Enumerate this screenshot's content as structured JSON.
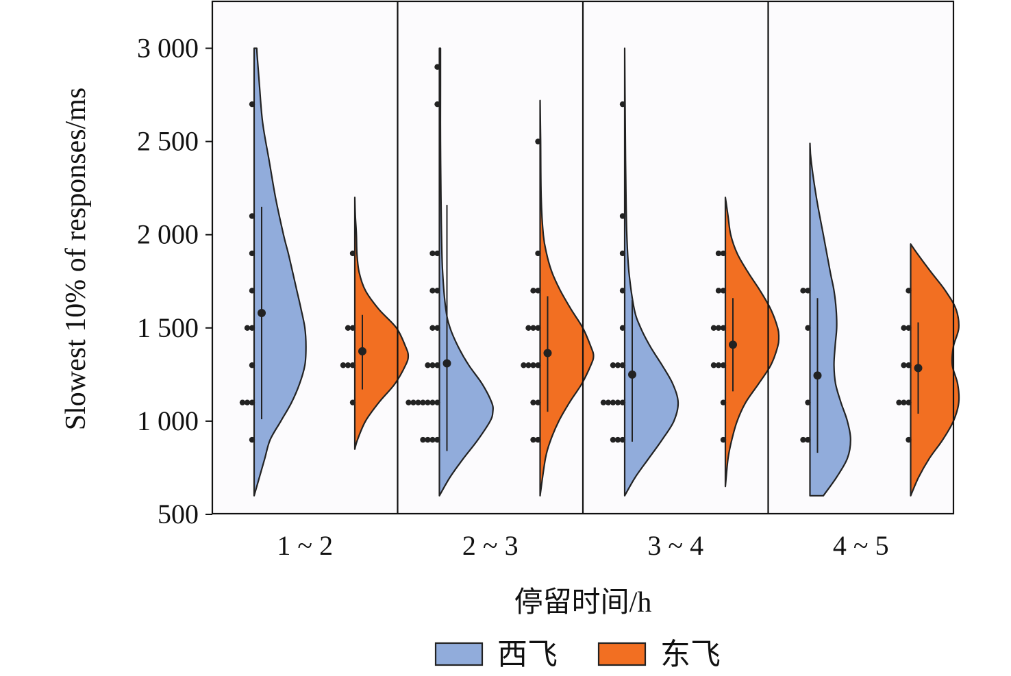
{
  "chart_data": {
    "type": "violin",
    "ylabel": "Slowest 10% of responses/ms",
    "xlabel": "停留时间/h",
    "ylim": [
      500,
      3250
    ],
    "yticks": [
      500,
      1000,
      1500,
      2000,
      2500,
      3000
    ],
    "ytick_labels": [
      "500",
      "1 000",
      "1 500",
      "2 000",
      "2 500",
      "3 000"
    ],
    "categories": [
      "1 ~ 2",
      "2 ~ 3",
      "3 ~ 4",
      "4 ~ 5"
    ],
    "legend_position": "bottom-center",
    "series": [
      {
        "name": "西飞",
        "color": "#91acdb",
        "groups": [
          {
            "density": [
              [
                600,
                0.0
              ],
              [
                700,
                0.1
              ],
              [
                800,
                0.2
              ],
              [
                900,
                0.3
              ],
              [
                1000,
                0.5
              ],
              [
                1100,
                0.7
              ],
              [
                1200,
                0.85
              ],
              [
                1300,
                0.95
              ],
              [
                1400,
                0.97
              ],
              [
                1500,
                0.95
              ],
              [
                1600,
                0.88
              ],
              [
                1700,
                0.8
              ],
              [
                1800,
                0.72
              ],
              [
                1900,
                0.64
              ],
              [
                2000,
                0.55
              ],
              [
                2200,
                0.4
              ],
              [
                2400,
                0.28
              ],
              [
                2600,
                0.16
              ],
              [
                2800,
                0.1
              ],
              [
                2950,
                0.06
              ],
              [
                3000,
                0.05
              ]
            ],
            "points": [
              [
                900,
                1
              ],
              [
                1100,
                3
              ],
              [
                1300,
                1
              ],
              [
                1500,
                2
              ],
              [
                1700,
                1
              ],
              [
                1900,
                1
              ],
              [
                2100,
                1
              ],
              [
                2700,
                1
              ]
            ],
            "median": 1580,
            "range": [
              1010,
              2150
            ]
          },
          {
            "density": [
              [
                600,
                0.0
              ],
              [
                700,
                0.2
              ],
              [
                800,
                0.45
              ],
              [
                900,
                0.72
              ],
              [
                1000,
                0.95
              ],
              [
                1050,
                1.0
              ],
              [
                1100,
                0.98
              ],
              [
                1200,
                0.8
              ],
              [
                1300,
                0.55
              ],
              [
                1400,
                0.35
              ],
              [
                1500,
                0.2
              ],
              [
                1600,
                0.12
              ],
              [
                1800,
                0.06
              ],
              [
                2000,
                0.04
              ],
              [
                2200,
                0.03
              ],
              [
                2500,
                0.02
              ],
              [
                2800,
                0.02
              ],
              [
                3000,
                0.02
              ]
            ],
            "points": [
              [
                900,
                4
              ],
              [
                1100,
                7
              ],
              [
                1300,
                3
              ],
              [
                1500,
                2
              ],
              [
                1700,
                2
              ],
              [
                1900,
                2
              ],
              [
                2700,
                1
              ],
              [
                2900,
                1
              ]
            ],
            "median": 1310,
            "range": [
              840,
              2160
            ]
          },
          {
            "density": [
              [
                600,
                0.0
              ],
              [
                700,
                0.2
              ],
              [
                800,
                0.45
              ],
              [
                900,
                0.7
              ],
              [
                1000,
                0.92
              ],
              [
                1100,
                1.0
              ],
              [
                1200,
                0.9
              ],
              [
                1300,
                0.7
              ],
              [
                1400,
                0.48
              ],
              [
                1500,
                0.3
              ],
              [
                1600,
                0.18
              ],
              [
                1800,
                0.08
              ],
              [
                2000,
                0.04
              ],
              [
                2300,
                0.02
              ],
              [
                2600,
                0.01
              ],
              [
                3000,
                0.0
              ]
            ],
            "points": [
              [
                900,
                3
              ],
              [
                1100,
                5
              ],
              [
                1300,
                3
              ],
              [
                1500,
                1
              ],
              [
                1700,
                1
              ],
              [
                1900,
                1
              ],
              [
                2100,
                1
              ],
              [
                2700,
                1
              ]
            ],
            "median": 1250,
            "range": [
              890,
              1650
            ]
          },
          {
            "density": [
              [
                600,
                0.25
              ],
              [
                700,
                0.5
              ],
              [
                800,
                0.7
              ],
              [
                900,
                0.76
              ],
              [
                1000,
                0.7
              ],
              [
                1100,
                0.58
              ],
              [
                1200,
                0.48
              ],
              [
                1300,
                0.45
              ],
              [
                1400,
                0.47
              ],
              [
                1500,
                0.5
              ],
              [
                1600,
                0.49
              ],
              [
                1700,
                0.45
              ],
              [
                1800,
                0.38
              ],
              [
                2000,
                0.25
              ],
              [
                2200,
                0.12
              ],
              [
                2400,
                0.02
              ],
              [
                2490,
                0.0
              ]
            ],
            "points": [
              [
                900,
                2
              ],
              [
                1100,
                1
              ],
              [
                1500,
                1
              ],
              [
                1700,
                2
              ]
            ],
            "median": 1245,
            "range": [
              830,
              1660
            ]
          }
        ]
      },
      {
        "name": "东飞",
        "color": "#f26f22",
        "groups": [
          {
            "density": [
              [
                850,
                0.0
              ],
              [
                900,
                0.05
              ],
              [
                1000,
                0.2
              ],
              [
                1100,
                0.45
              ],
              [
                1200,
                0.75
              ],
              [
                1300,
                0.95
              ],
              [
                1350,
                1.0
              ],
              [
                1400,
                0.95
              ],
              [
                1500,
                0.78
              ],
              [
                1600,
                0.45
              ],
              [
                1700,
                0.2
              ],
              [
                1800,
                0.08
              ],
              [
                1900,
                0.04
              ],
              [
                2000,
                0.03
              ],
              [
                2100,
                0.01
              ],
              [
                2200,
                0.0
              ]
            ],
            "points": [
              [
                1100,
                1
              ],
              [
                1300,
                3
              ],
              [
                1500,
                2
              ],
              [
                1900,
                1
              ]
            ],
            "median": 1375,
            "range": [
              1170,
              1570
            ]
          },
          {
            "density": [
              [
                600,
                0.0
              ],
              [
                800,
                0.1
              ],
              [
                900,
                0.2
              ],
              [
                1000,
                0.35
              ],
              [
                1100,
                0.55
              ],
              [
                1200,
                0.78
              ],
              [
                1300,
                0.95
              ],
              [
                1350,
                1.0
              ],
              [
                1400,
                0.95
              ],
              [
                1500,
                0.8
              ],
              [
                1600,
                0.58
              ],
              [
                1700,
                0.38
              ],
              [
                1800,
                0.22
              ],
              [
                1900,
                0.12
              ],
              [
                2000,
                0.06
              ],
              [
                2200,
                0.02
              ],
              [
                2500,
                0.01
              ],
              [
                2720,
                0.0
              ]
            ],
            "points": [
              [
                900,
                2
              ],
              [
                1100,
                2
              ],
              [
                1300,
                4
              ],
              [
                1500,
                3
              ],
              [
                1700,
                2
              ],
              [
                1900,
                1
              ],
              [
                2500,
                1
              ]
            ],
            "median": 1365,
            "range": [
              1050,
              1670
            ]
          },
          {
            "density": [
              [
                650,
                0.0
              ],
              [
                800,
                0.05
              ],
              [
                900,
                0.12
              ],
              [
                1000,
                0.22
              ],
              [
                1100,
                0.38
              ],
              [
                1200,
                0.62
              ],
              [
                1300,
                0.85
              ],
              [
                1400,
                0.98
              ],
              [
                1450,
                1.0
              ],
              [
                1500,
                0.98
              ],
              [
                1600,
                0.85
              ],
              [
                1700,
                0.65
              ],
              [
                1800,
                0.42
              ],
              [
                1900,
                0.22
              ],
              [
                2000,
                0.1
              ],
              [
                2100,
                0.05
              ],
              [
                2200,
                0.0
              ]
            ],
            "points": [
              [
                900,
                1
              ],
              [
                1100,
                1
              ],
              [
                1300,
                3
              ],
              [
                1500,
                3
              ],
              [
                1700,
                2
              ],
              [
                1900,
                2
              ]
            ],
            "median": 1410,
            "range": [
              1160,
              1660
            ]
          },
          {
            "density": [
              [
                600,
                0.0
              ],
              [
                700,
                0.15
              ],
              [
                800,
                0.35
              ],
              [
                900,
                0.6
              ],
              [
                1000,
                0.8
              ],
              [
                1100,
                0.9
              ],
              [
                1200,
                0.88
              ],
              [
                1300,
                0.78
              ],
              [
                1400,
                0.8
              ],
              [
                1500,
                0.9
              ],
              [
                1600,
                0.85
              ],
              [
                1700,
                0.65
              ],
              [
                1800,
                0.38
              ],
              [
                1900,
                0.12
              ],
              [
                1950,
                0.0
              ]
            ],
            "points": [
              [
                900,
                1
              ],
              [
                1100,
                3
              ],
              [
                1300,
                2
              ],
              [
                1500,
                2
              ],
              [
                1700,
                1
              ]
            ],
            "median": 1285,
            "range": [
              1040,
              1530
            ]
          }
        ]
      }
    ]
  }
}
